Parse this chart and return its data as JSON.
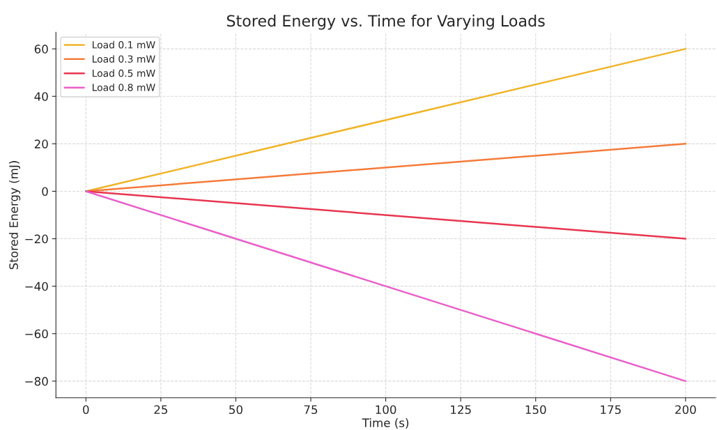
{
  "chart_data": {
    "type": "line",
    "title": "Stored Energy vs. Time for Varying Loads",
    "xlabel": "Time (s)",
    "ylabel": "Stored Energy (mJ)",
    "x": [
      0,
      200
    ],
    "series": [
      {
        "name": "Load 0.1 mW",
        "color": "#f0b429",
        "values": [
          0,
          60
        ]
      },
      {
        "name": "Load 0.3 mW",
        "color": "#f57b3a",
        "values": [
          0,
          20
        ]
      },
      {
        "name": "Load 0.5 mW",
        "color": "#e8354f",
        "values": [
          0,
          -20
        ]
      },
      {
        "name": "Load 0.8 mW",
        "color": "#ea5fc9",
        "values": [
          0,
          -80
        ]
      }
    ],
    "xlim": [
      -10,
      210
    ],
    "xticks": [
      0,
      25,
      50,
      75,
      100,
      125,
      150,
      175,
      200
    ],
    "ylim": [
      -87,
      67
    ],
    "yticks": [
      {
        "value": -80,
        "label": "−80"
      },
      {
        "value": -60,
        "label": "−60"
      },
      {
        "value": -40,
        "label": "−40"
      },
      {
        "value": -20,
        "label": "−20"
      },
      0,
      20,
      40,
      60
    ],
    "grid": true,
    "legend": "top left",
    "marker": "none",
    "line_style": "solid"
  }
}
